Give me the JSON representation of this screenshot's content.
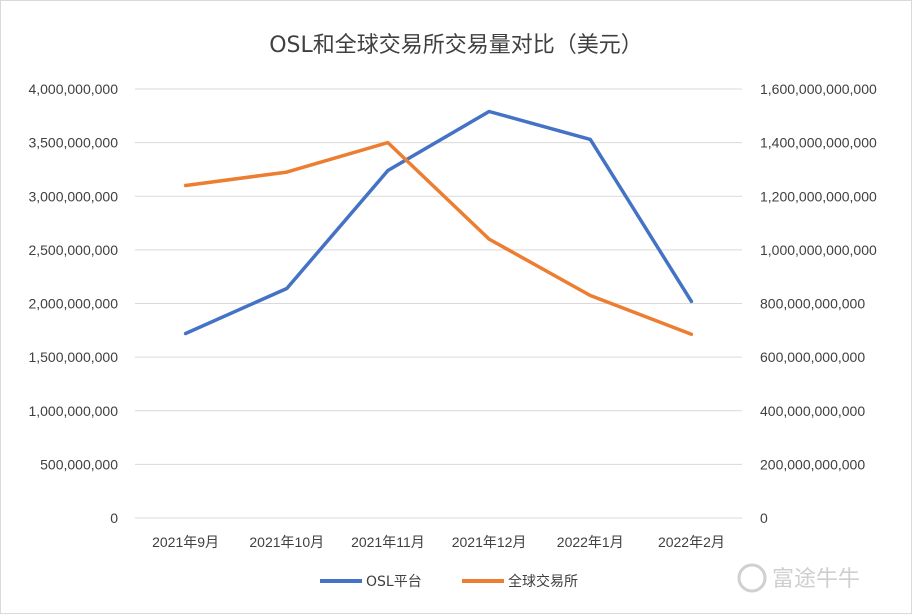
{
  "chart_data": {
    "type": "line",
    "title": "OSL和全球交易所交易量对比（美元）",
    "categories": [
      "2021年9月",
      "2021年10月",
      "2021年11月",
      "2021年12月",
      "2022年1月",
      "2022年2月"
    ],
    "series": [
      {
        "name": "OSL平台",
        "axis": "left",
        "color": "#4472C4",
        "values": [
          1720000000,
          2140000000,
          3240000000,
          3790000000,
          3530000000,
          2020000000
        ]
      },
      {
        "name": "全球交易所",
        "axis": "right",
        "color": "#ED7D31",
        "values": [
          1240000000000,
          1290000000000,
          1400000000000,
          1040000000000,
          830000000000,
          685000000000
        ]
      }
    ],
    "y_left": {
      "ylim": [
        0,
        4000000000
      ],
      "ticks": [
        "0",
        "500,000,000",
        "1,000,000,000",
        "1,500,000,000",
        "2,000,000,000",
        "2,500,000,000",
        "3,000,000,000",
        "3,500,000,000",
        "4,000,000,000"
      ]
    },
    "y_right": {
      "ylim": [
        0,
        1600000000000
      ],
      "ticks": [
        "0",
        "200,000,000,000",
        "400,000,000,000",
        "600,000,000,000",
        "800,000,000,000",
        "1,000,000,000,000",
        "1,200,000,000,000",
        "1,400,000,000,000",
        "1,600,000,000,000"
      ]
    },
    "grid": true,
    "legend_position": "bottom"
  },
  "watermark": "富途牛牛"
}
